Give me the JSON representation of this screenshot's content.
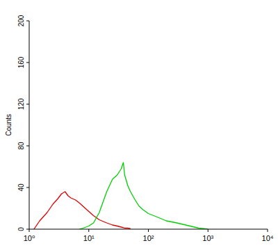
{
  "chart_data": {
    "type": "line",
    "y_label": "Counts",
    "log": "x",
    "grid": false,
    "xlim": [
      1,
      10000
    ],
    "ylim": [
      0,
      200
    ],
    "xticks": [
      {
        "value": 1,
        "label": "10⁰"
      },
      {
        "value": 10,
        "label": "10¹"
      },
      {
        "value": 100,
        "label": "10²"
      },
      {
        "value": 1000,
        "label": "10³"
      },
      {
        "value": 10000,
        "label": "10⁴"
      }
    ],
    "yticks": [
      0,
      40,
      80,
      120,
      160,
      200
    ],
    "x": [
      1.2,
      1.5,
      2,
      2.5,
      3,
      3.5,
      4,
      4.5,
      5,
      6,
      7,
      8,
      10,
      12,
      15,
      20,
      25,
      30,
      35,
      38,
      40,
      45,
      50,
      60,
      70,
      80,
      100,
      150,
      200,
      300,
      500,
      700,
      1000
    ],
    "series": [
      {
        "color": "#e00000",
        "values": [
          0,
          8,
          16,
          24,
          29,
          34,
          36,
          32,
          30,
          28,
          25,
          22,
          17,
          13,
          9,
          6,
          4,
          3,
          2,
          1.5,
          1,
          1,
          0.5,
          null,
          null,
          null,
          null,
          null,
          null,
          null,
          null,
          null,
          null
        ]
      },
      {
        "color": "#00d000",
        "values": [
          null,
          null,
          null,
          null,
          null,
          null,
          null,
          null,
          null,
          null,
          0,
          1,
          3,
          6,
          16,
          36,
          48,
          52,
          58,
          64,
          52,
          42,
          36,
          28,
          22,
          19,
          15,
          11,
          8,
          6,
          3,
          1,
          0
        ]
      }
    ]
  }
}
